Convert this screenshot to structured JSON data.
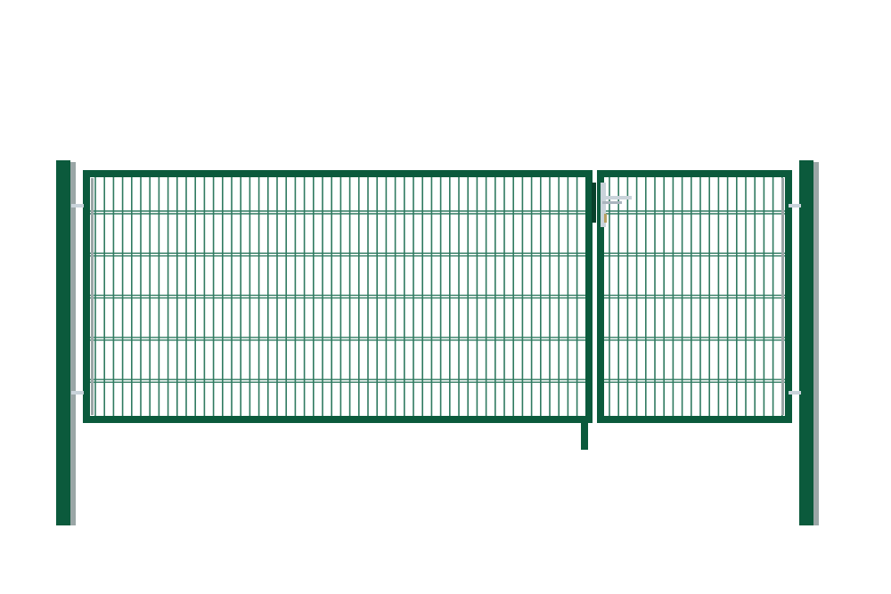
{
  "colors": {
    "frame": "#0b5a3c",
    "frame_shadow": "#07402a",
    "wire": "#2f7a60",
    "post_side": "#9aa6a6",
    "hardware": "#c9d3da",
    "background": "#ffffff"
  },
  "gate": {
    "leaves": 2,
    "horizontal_wire_rows": 5
  }
}
